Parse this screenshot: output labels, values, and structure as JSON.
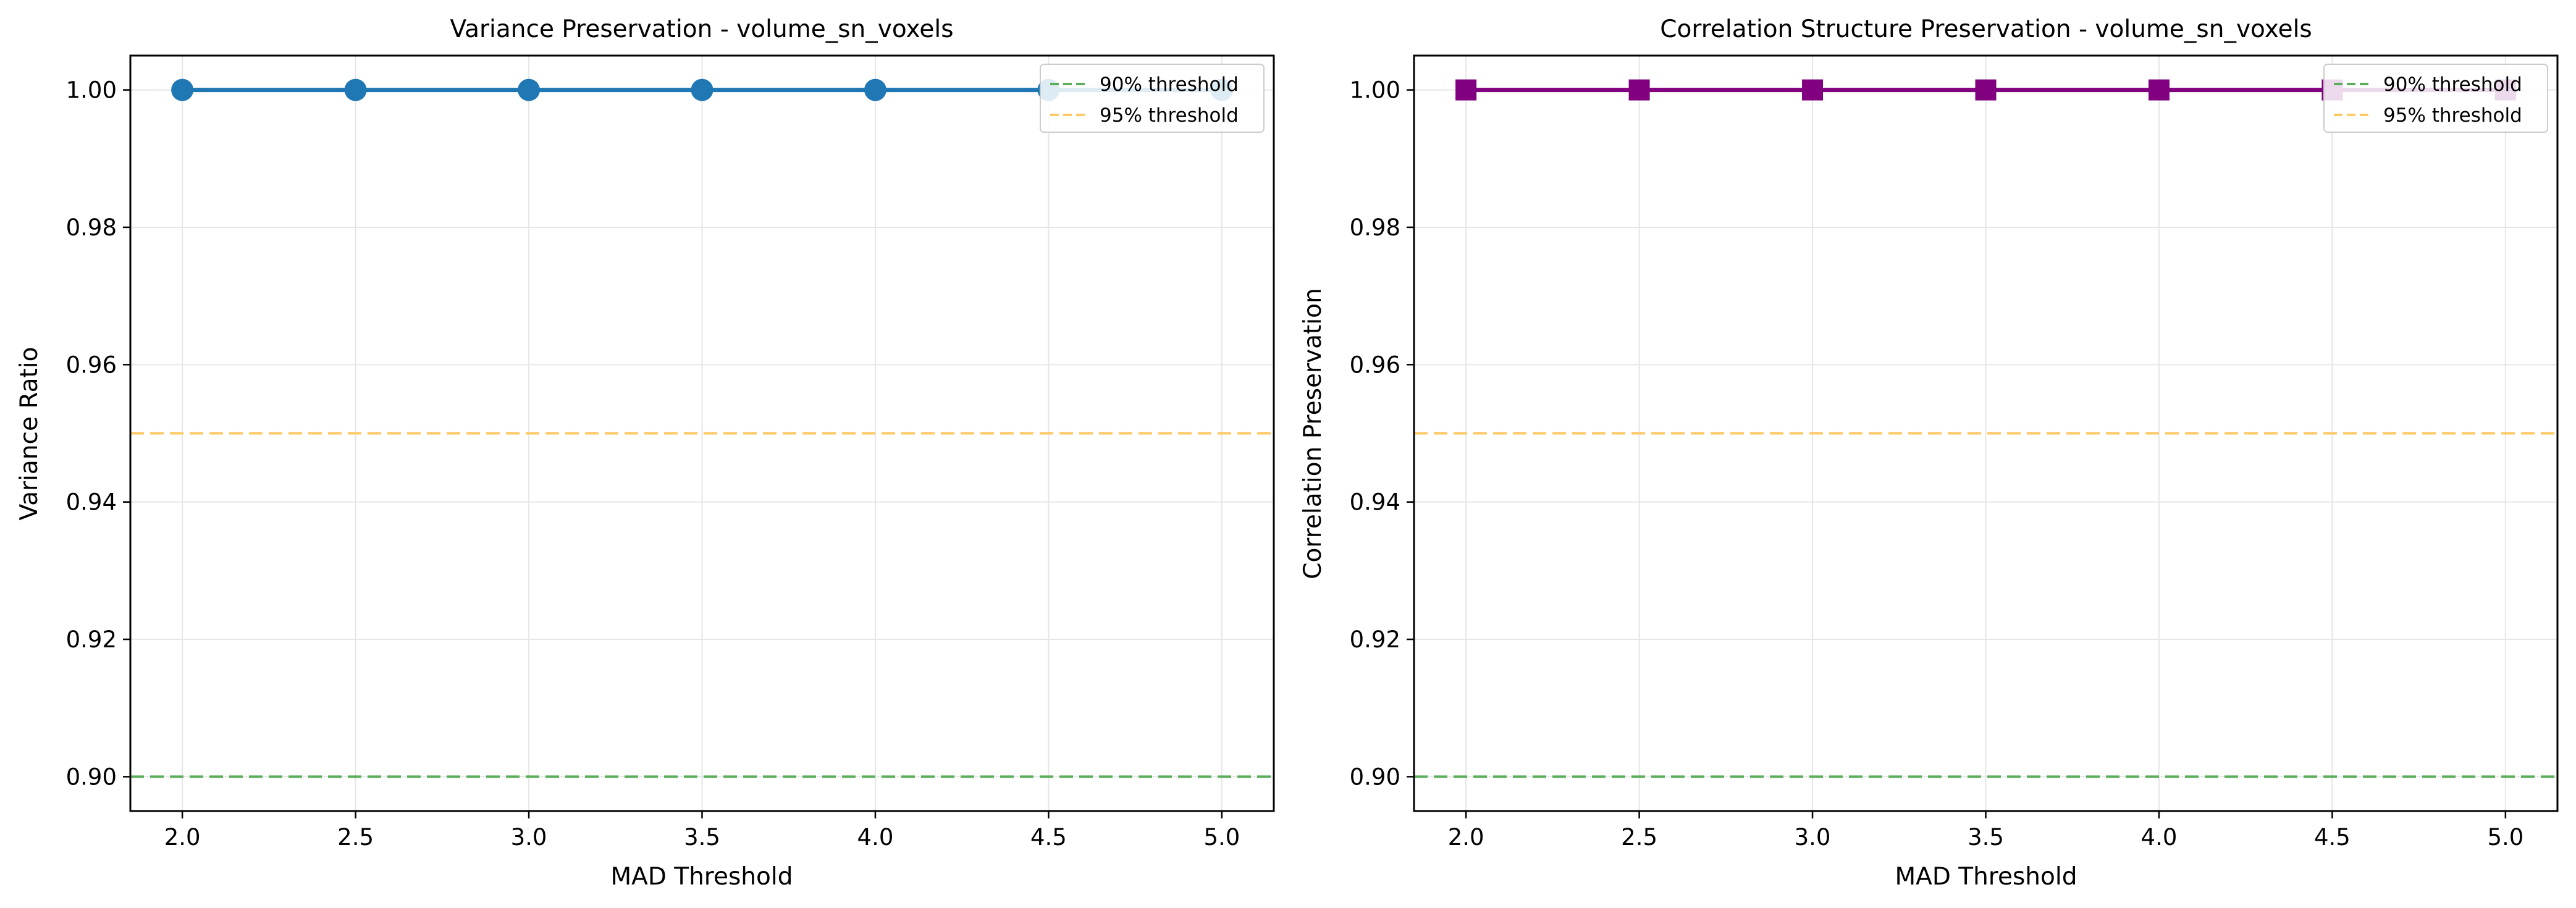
{
  "chart_data": [
    {
      "type": "line",
      "title": "Variance Preservation - volume_sn_voxels",
      "xlabel": "MAD Threshold",
      "ylabel": "Variance Ratio",
      "xlim": [
        1.85,
        5.15
      ],
      "ylim": [
        0.895,
        1.005
      ],
      "xticks": [
        2.0,
        2.5,
        3.0,
        3.5,
        4.0,
        4.5,
        5.0
      ],
      "xtick_labels": [
        "2.0",
        "2.5",
        "3.0",
        "3.5",
        "4.0",
        "4.5",
        "5.0"
      ],
      "yticks": [
        0.9,
        0.92,
        0.94,
        0.96,
        0.98,
        1.0
      ],
      "ytick_labels": [
        "0.90",
        "0.92",
        "0.94",
        "0.96",
        "0.98",
        "1.00"
      ],
      "grid": true,
      "legend_position": "top-right",
      "series": [
        {
          "color": "#1f77b4",
          "marker": "circle",
          "x": [
            2.0,
            2.5,
            3.0,
            3.5,
            4.0,
            4.5,
            5.0
          ],
          "y": [
            1.0,
            1.0,
            1.0,
            1.0,
            1.0,
            1.0,
            1.0
          ]
        }
      ],
      "reference_lines": [
        {
          "name": "90% threshold",
          "y": 0.9,
          "color": "#5cad5c",
          "style": "dashed"
        },
        {
          "name": "95% threshold",
          "y": 0.95,
          "color": "#ffc966",
          "style": "dashed"
        }
      ]
    },
    {
      "type": "line",
      "title": "Correlation Structure Preservation - volume_sn_voxels",
      "xlabel": "MAD Threshold",
      "ylabel": "Correlation Preservation",
      "xlim": [
        1.85,
        5.15
      ],
      "ylim": [
        0.895,
        1.005
      ],
      "xticks": [
        2.0,
        2.5,
        3.0,
        3.5,
        4.0,
        4.5,
        5.0
      ],
      "xtick_labels": [
        "2.0",
        "2.5",
        "3.0",
        "3.5",
        "4.0",
        "4.5",
        "5.0"
      ],
      "yticks": [
        0.9,
        0.92,
        0.94,
        0.96,
        0.98,
        1.0
      ],
      "ytick_labels": [
        "0.90",
        "0.92",
        "0.94",
        "0.96",
        "0.98",
        "1.00"
      ],
      "grid": true,
      "legend_position": "top-right",
      "series": [
        {
          "color": "#800080",
          "marker": "square",
          "x": [
            2.0,
            2.5,
            3.0,
            3.5,
            4.0,
            4.5,
            5.0
          ],
          "y": [
            1.0,
            1.0,
            1.0,
            1.0,
            1.0,
            1.0,
            1.0
          ]
        }
      ],
      "reference_lines": [
        {
          "name": "90% threshold",
          "y": 0.9,
          "color": "#5cad5c",
          "style": "dashed"
        },
        {
          "name": "95% threshold",
          "y": 0.95,
          "color": "#ffc966",
          "style": "dashed"
        }
      ]
    }
  ]
}
